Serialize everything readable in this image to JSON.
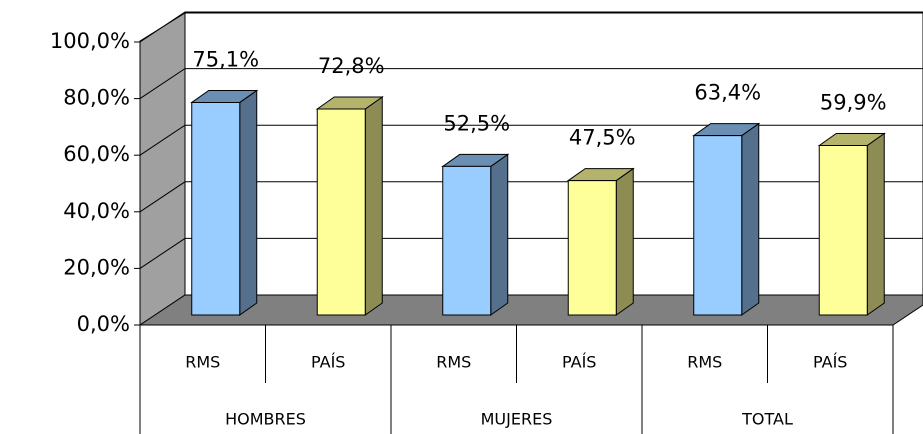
{
  "chart_data": {
    "type": "bar3d",
    "categories": [
      "HOMBRES",
      "MUJERES",
      "TOTAL"
    ],
    "series": [
      {
        "name": "RMS",
        "color": "#99ccff",
        "values": [
          75.1,
          52.5,
          63.4
        ],
        "value_labels": [
          "75,1%",
          "52,5%",
          "63,4%"
        ]
      },
      {
        "name": "PAÍS",
        "color": "#ffff99",
        "values": [
          72.8,
          47.5,
          59.9
        ],
        "value_labels": [
          "72,8%",
          "47,5%",
          "59,9%"
        ]
      }
    ],
    "ylim": [
      0,
      100
    ],
    "yticks": [
      {
        "value": 0,
        "label": "0,0%"
      },
      {
        "value": 20,
        "label": "20,0%"
      },
      {
        "value": 40,
        "label": "40,0%"
      },
      {
        "value": 60,
        "label": "60,0%"
      },
      {
        "value": 80,
        "label": "80,0%"
      },
      {
        "value": 100,
        "label": "100,0%"
      }
    ],
    "grid": true
  }
}
